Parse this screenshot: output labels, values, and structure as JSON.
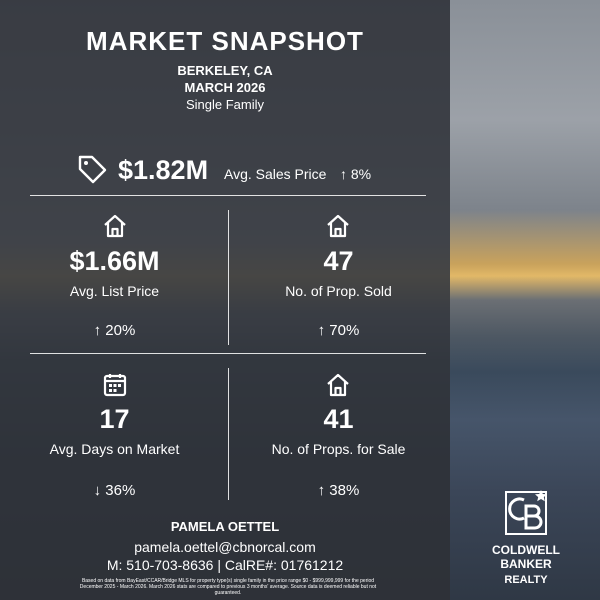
{
  "header": {
    "title": "MARKET SNAPSHOT",
    "location": "BERKELEY, CA",
    "period": "MARCH 2026",
    "property_type": "Single Family"
  },
  "headline": {
    "value": "$1.82M",
    "label": "Avg. Sales Price",
    "change": "↑ 8%"
  },
  "stats": [
    {
      "value": "$1.66M",
      "label": "Avg. List Price",
      "change": "↑ 20%"
    },
    {
      "value": "47",
      "label": "No. of Prop. Sold",
      "change": "↑ 70%"
    },
    {
      "value": "17",
      "label": "Avg. Days on Market",
      "change": "↓ 36%"
    },
    {
      "value": "41",
      "label": "No. of Props. for Sale",
      "change": "↑ 38%"
    }
  ],
  "agent": {
    "name": "PAMELA OETTEL",
    "email": "pamela.oettel@cbnorcal.com",
    "contact": "M: 510-703-8636 | CalRE#: 01761212"
  },
  "disclaimer": "Based on data from BayEast/CCAR/Bridge MLS for property type(s) single family in the price range $0 - $999,999,999 for the period December 2025 - March 2026. March 2026 stats are compared to previous 3 months' average. Source data is deemed reliable but not guaranteed.",
  "logo": {
    "line1": "COLDWELL",
    "line2": "BANKER",
    "line3": "REALTY"
  }
}
